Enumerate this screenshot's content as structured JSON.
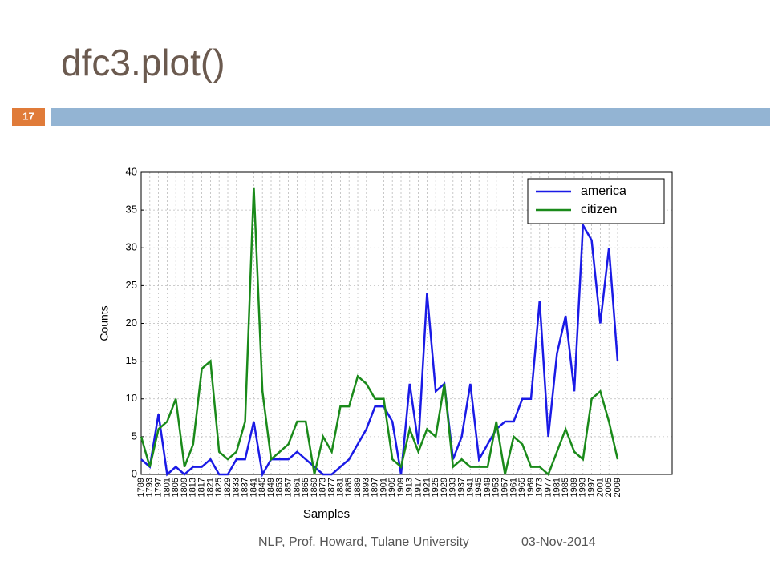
{
  "slide": {
    "title": "dfc3.plot()",
    "number": "17",
    "footer": "NLP, Prof. Howard, Tulane University",
    "date": "03-Nov-2014"
  },
  "chart_data": {
    "type": "line",
    "ylabel": "Counts",
    "xlabel": "Samples",
    "categories": [
      "1789",
      "1793",
      "1797",
      "1801",
      "1805",
      "1809",
      "1813",
      "1817",
      "1821",
      "1825",
      "1829",
      "1833",
      "1837",
      "1841",
      "1845",
      "1849",
      "1853",
      "1857",
      "1861",
      "1865",
      "1869",
      "1873",
      "1877",
      "1881",
      "1885",
      "1889",
      "1893",
      "1897",
      "1901",
      "1905",
      "1909",
      "1913",
      "1917",
      "1921",
      "1925",
      "1929",
      "1933",
      "1937",
      "1941",
      "1945",
      "1949",
      "1953",
      "1957",
      "1961",
      "1965",
      "1969",
      "1973",
      "1977",
      "1981",
      "1985",
      "1989",
      "1993",
      "1997",
      "2001",
      "2005",
      "2009"
    ],
    "series": [
      {
        "name": "america",
        "color": "#1a1ae6",
        "values": [
          2,
          1,
          8,
          0,
          1,
          0,
          1,
          1,
          2,
          0,
          0,
          2,
          2,
          7,
          0,
          2,
          2,
          2,
          3,
          2,
          1,
          0,
          0,
          1,
          2,
          4,
          6,
          9,
          9,
          7,
          0,
          12,
          4,
          24,
          11,
          12,
          2,
          5,
          12,
          2,
          4,
          6,
          7,
          7,
          10,
          10,
          23,
          5,
          16,
          21,
          11,
          33,
          31,
          20,
          30,
          15
        ]
      },
      {
        "name": "citizen",
        "color": "#1a8a1a",
        "values": [
          5,
          1,
          6,
          7,
          10,
          1,
          4,
          14,
          15,
          3,
          2,
          3,
          7,
          38,
          11,
          2,
          3,
          4,
          7,
          7,
          0,
          5,
          3,
          9,
          9,
          13,
          12,
          10,
          10,
          2,
          1,
          6,
          3,
          6,
          5,
          12,
          1,
          2,
          1,
          1,
          1,
          7,
          0,
          5,
          4,
          1,
          1,
          0,
          3,
          6,
          3,
          2,
          10,
          11,
          7,
          2
        ]
      }
    ],
    "ylim": [
      0,
      40
    ],
    "yticks": [
      0,
      5,
      10,
      15,
      20,
      25,
      30,
      35,
      40
    ],
    "grid": true,
    "legend": "upper right"
  }
}
